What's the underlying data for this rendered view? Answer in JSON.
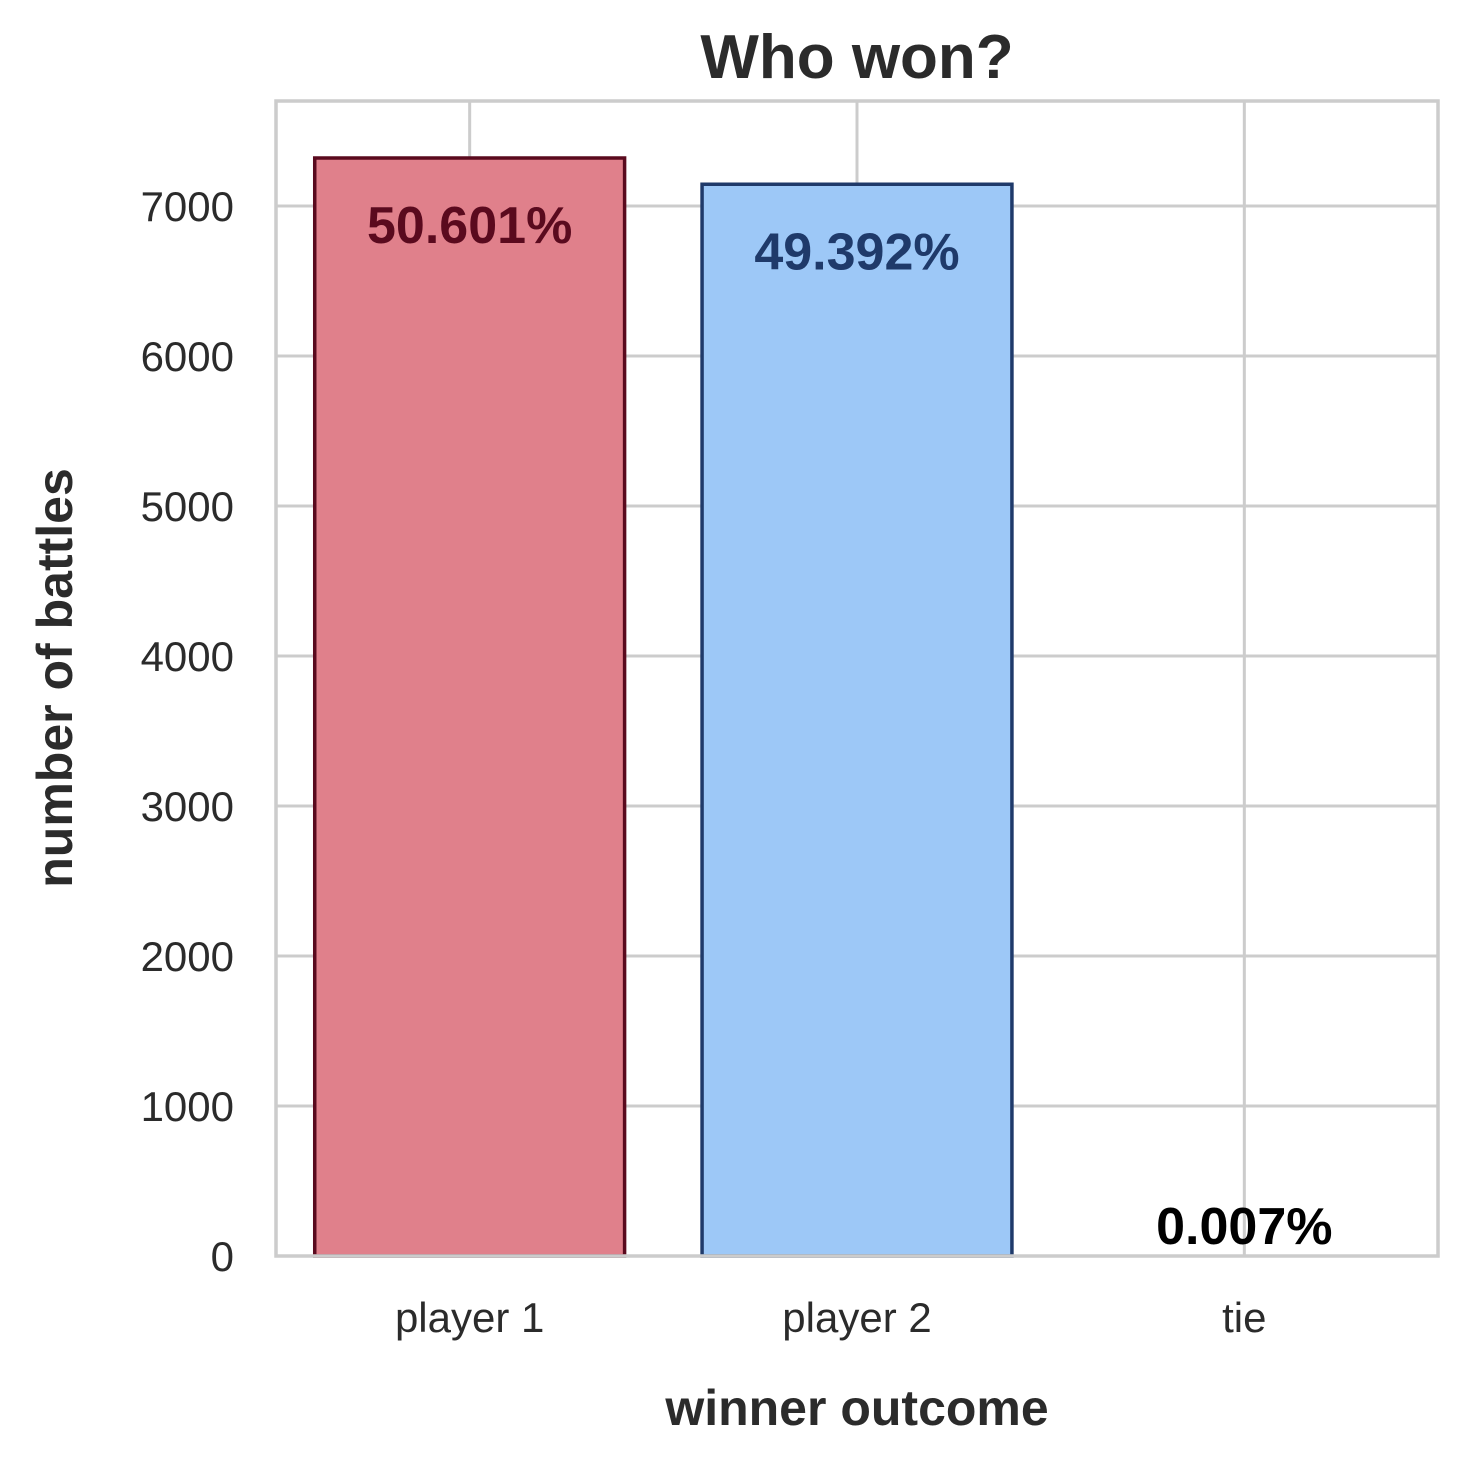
{
  "chart_data": {
    "type": "bar",
    "title": "Who won?",
    "xlabel": "winner outcome",
    "ylabel": "number of battles",
    "categories": [
      "player 1",
      "player 2",
      "tie"
    ],
    "values": [
      7320,
      7145,
      1
    ],
    "data_labels": [
      "50.601%",
      "49.392%",
      "0.007%"
    ],
    "ylim": [
      0,
      7700
    ],
    "yticks": [
      0,
      1000,
      2000,
      3000,
      4000,
      5000,
      6000,
      7000
    ],
    "ytick_labels": [
      "0",
      "1000",
      "2000",
      "3000",
      "4000",
      "5000",
      "6000",
      "7000"
    ],
    "grid": true,
    "bar_colors": [
      "#e0808b",
      "#9dc8f7",
      "#9dc8f7"
    ],
    "edge_colors": [
      "#5a0a1e",
      "#1f3a6a",
      "#888888"
    ],
    "label_colors": [
      "#5a0a1e",
      "#1f3a6a",
      "#000000"
    ]
  }
}
